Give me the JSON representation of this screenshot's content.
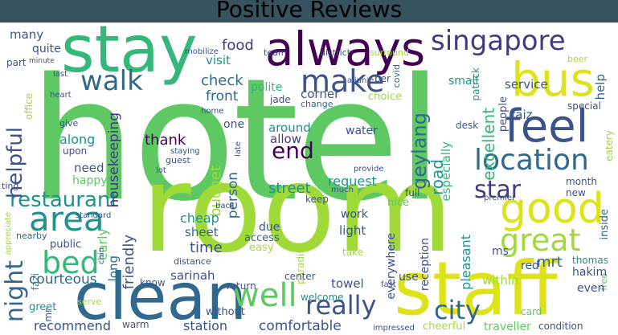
{
  "title": "Positive Reviews",
  "words": {
    "hotel": "hotel",
    "room": "room",
    "staff": "staff",
    "clean": "clean",
    "stay": "stay",
    "always": "always",
    "singapore": "singapore",
    "bus": "bus",
    "feel": "feel",
    "good": "good",
    "location": "location",
    "great": "great",
    "area": "area",
    "walk": "walk",
    "make": "make",
    "bed": "bed",
    "well": "well",
    "really": "really",
    "night": "night",
    "restaurant": "restaurant",
    "city": "city",
    "end": "end",
    "star": "star",
    "helpful": "helpful",
    "geylang": "geylang",
    "food": "food",
    "check": "check",
    "visit": "visit",
    "front": "front",
    "allow": "allow",
    "thank": "thank",
    "street": "street",
    "around": "around",
    "comfortable": "comfortable",
    "station": "station",
    "recommend": "recommend",
    "courteous": "courteous",
    "time": "time",
    "cheap": "cheap",
    "sheet": "sheet",
    "sarinah": "sarinah",
    "mrt": "mrt",
    "excellent": "excellent",
    "service": "service",
    "small": "small",
    "corner": "corner",
    "polite": "polite",
    "jade": "jade",
    "change": "change",
    "desk": "desk",
    "faiz": "faiz",
    "special": "special",
    "patrick": "patrick",
    "people": "people",
    "road": "road",
    "especially": "especially",
    "request": "request",
    "keep": "keep",
    "nice": "nice",
    "full": "full",
    "housekeeping": "housekeeping",
    "along": "along",
    "upon": "upon",
    "need": "need",
    "happy": "happy",
    "many": "many",
    "quite": "quite",
    "part": "part",
    "water": "water",
    "budget": "budget",
    "person": "person",
    "one": "one",
    "early": "early",
    "friendly": "friendly",
    "long": "long",
    "due": "due",
    "access": "access",
    "easy": "easy",
    "light": "light",
    "work": "work",
    "take": "take",
    "reception": "reception",
    "pleasant": "pleasant",
    "everywhere": "everywhere",
    "within": "within",
    "red": "red",
    "ms": "ms",
    "hakim": "hakim",
    "thomas": "thomas",
    "even": "even",
    "card": "card",
    "condition": "condition",
    "traveller": "traveller",
    "cheerful": "cheerful",
    "towel": "towel",
    "return": "return",
    "without": "without",
    "warm": "warm",
    "greet": "greet",
    "fazi": "fazi",
    "mr": "mr",
    "public": "public",
    "nearby": "nearby",
    "distance": "distance",
    "center": "center",
    "welcome": "welcome",
    "paradise": "paradise",
    "use": "use",
    "fast": "fast",
    "free": "free",
    "month": "month",
    "inside": "inside",
    "new": "new",
    "eatery": "eatery",
    "beer": "beer",
    "help": "help",
    "team": "team",
    "district": "district",
    "surround": "surround",
    "mobilize": "mobilize",
    "covid": "covid",
    "aljunie": "aljunie",
    "per": "per",
    "choice": "choice",
    "minute": "minute",
    "last": "last",
    "heart": "heart",
    "office": "office",
    "give": "give",
    "staying": "staying",
    "guest": "guest",
    "lot": "lot",
    "home": "home",
    "late": "late",
    "provide": "provide",
    "much": "much",
    "premier": "premier",
    "back": "back",
    "standard": "standard",
    "appreciate": "appreciate",
    "ting": "ting",
    "know": "know",
    "serve": "serve",
    "impressed": "impressed",
    "chin": "chin"
  },
  "colors": {
    "title_bar": "#37535f",
    "light_green": "#5ec962",
    "lime": "#a0da39",
    "yellow": "#dde318",
    "teal": "#21918c",
    "blue": "#31688e",
    "purple": "#440154",
    "indigo": "#443983",
    "green": "#35b779",
    "slate": "#3b528b"
  }
}
